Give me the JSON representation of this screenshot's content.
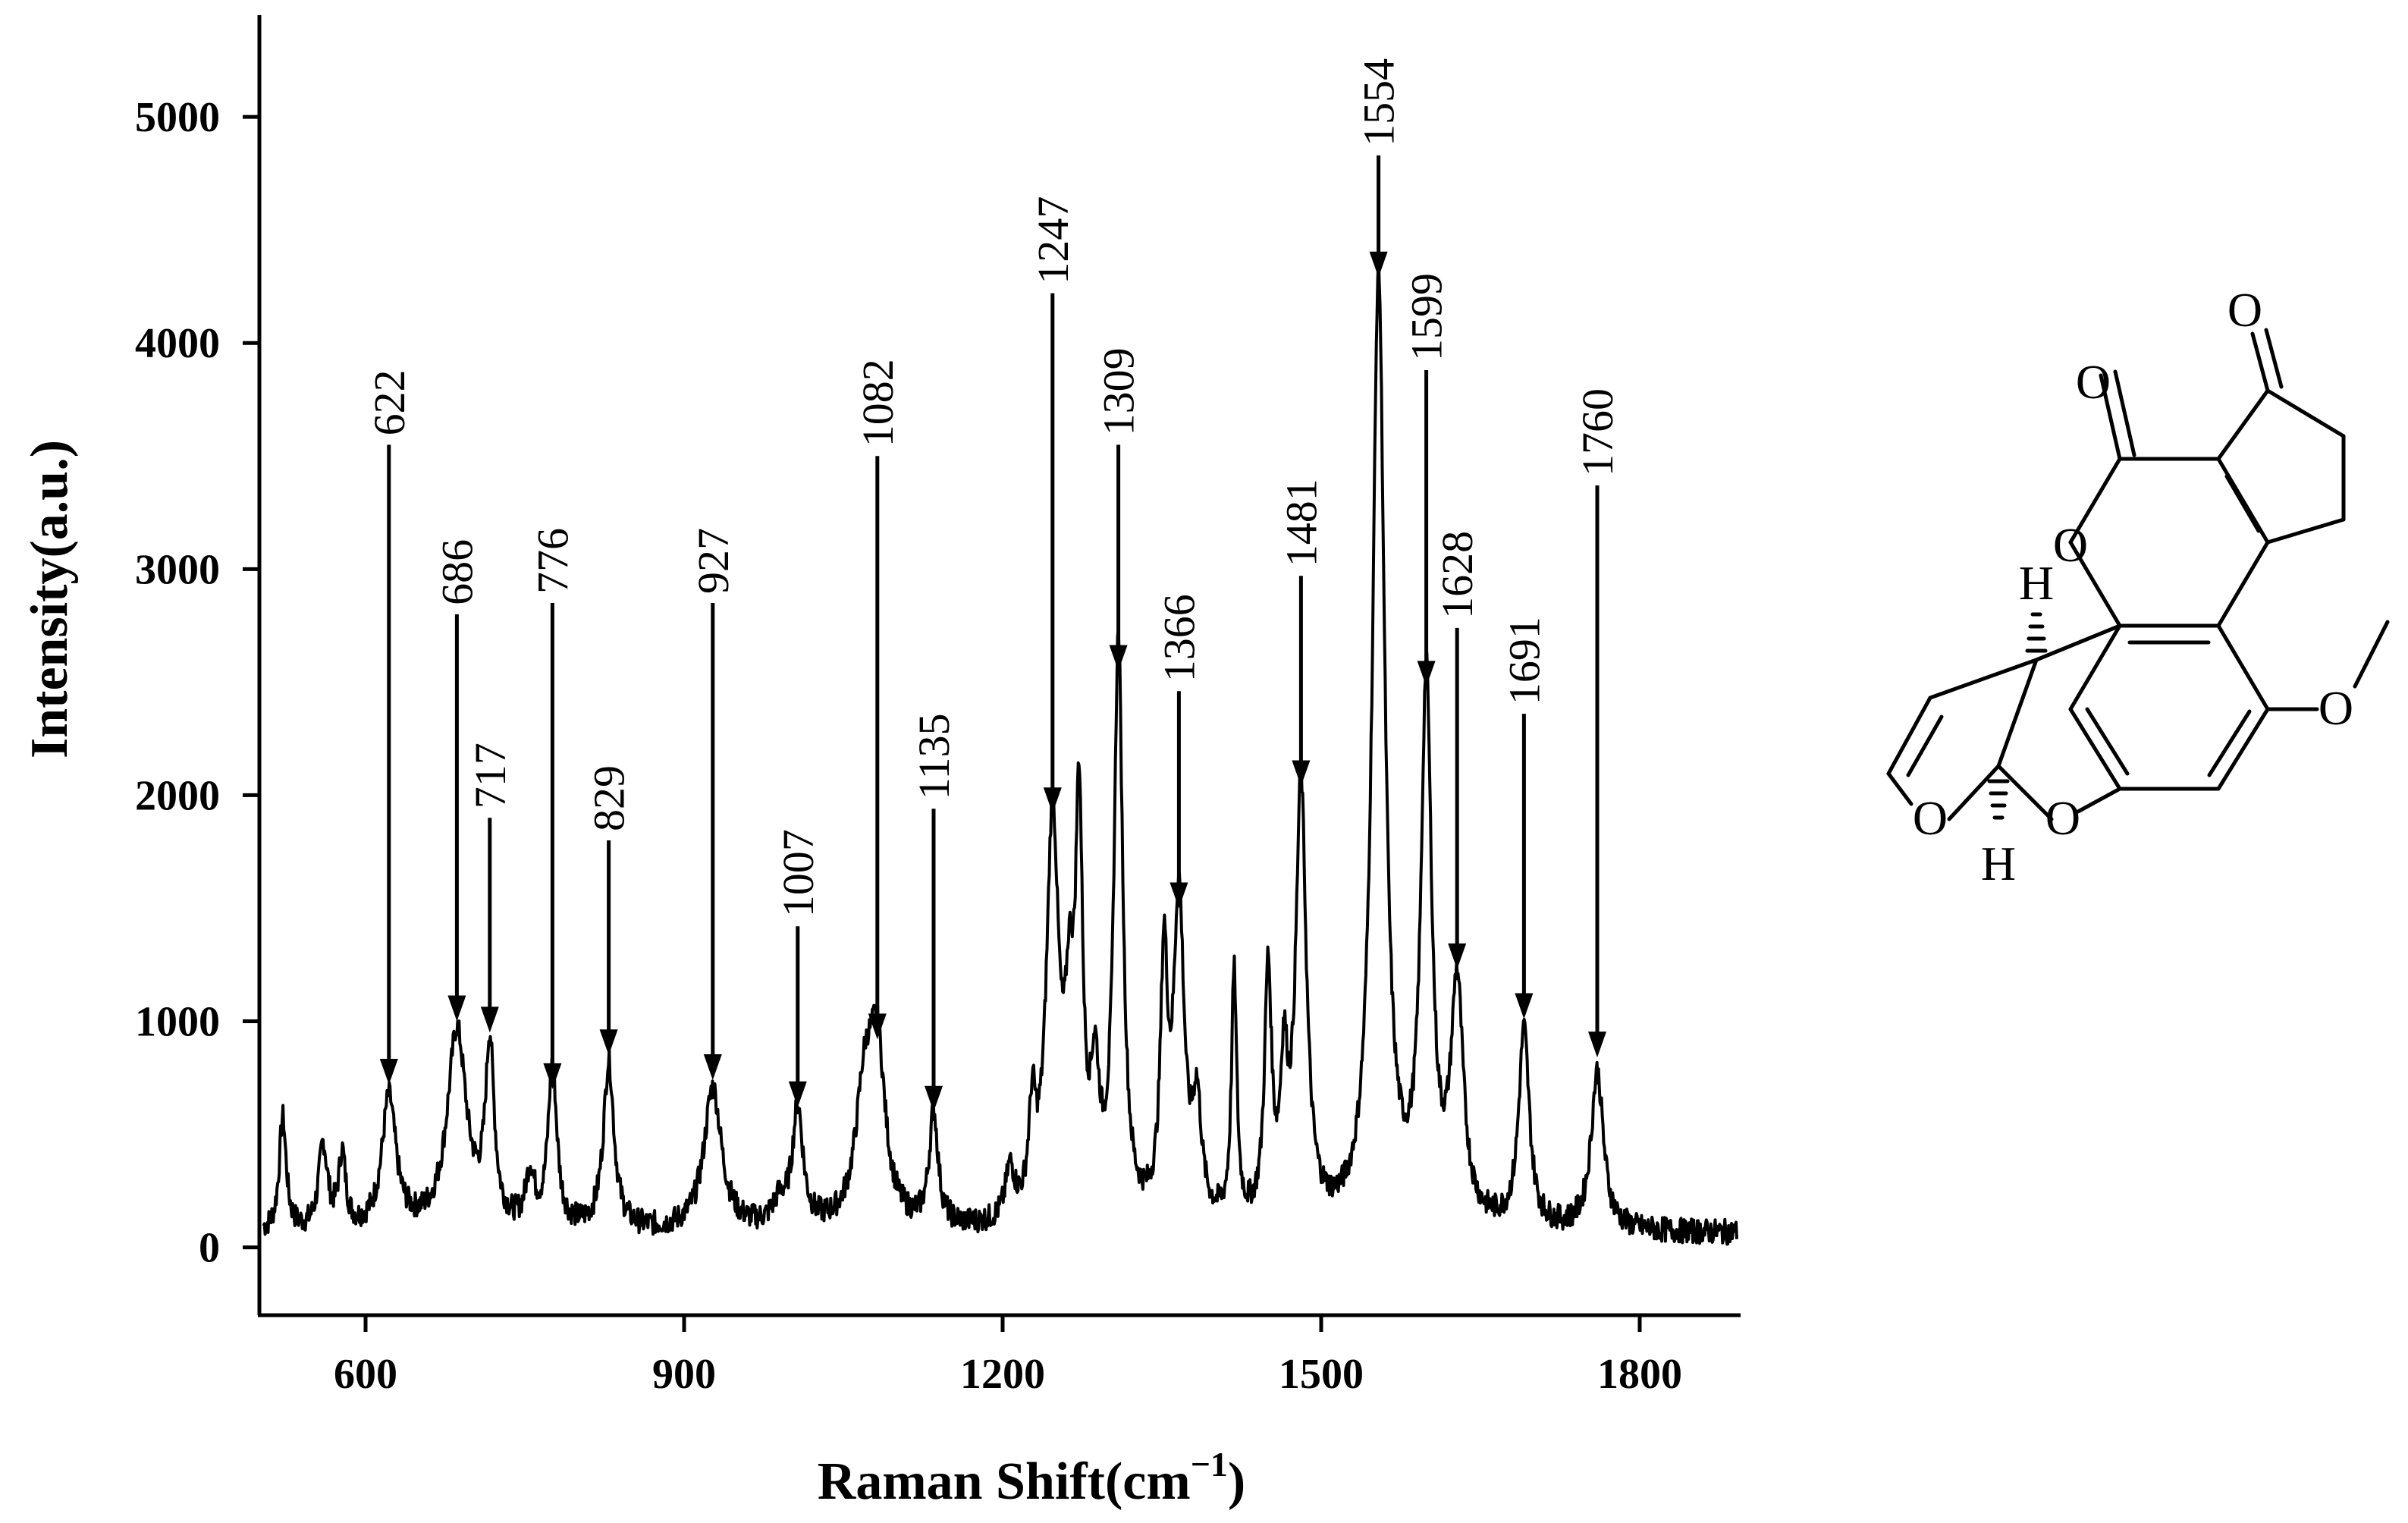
{
  "chart_data": {
    "type": "line",
    "title": "",
    "xlabel": "Raman Shift(cm",
    "xlabel_sup": "−1",
    "xlabel_close": ")",
    "ylabel": "Intensity(a.u.)",
    "xlim": [
      500,
      1895
    ],
    "ylim": [
      -300,
      5450
    ],
    "xticks": [
      600,
      900,
      1200,
      1500,
      1800
    ],
    "yticks": [
      0,
      1000,
      2000,
      3000,
      4000,
      5000
    ],
    "grid": false,
    "baseline": 60,
    "series": [
      {
        "name": "",
        "peaks": [
          {
            "x": 522,
            "y": 560,
            "w": 4
          },
          {
            "x": 560,
            "y": 430,
            "w": 5
          },
          {
            "x": 578,
            "y": 380,
            "w": 4
          },
          {
            "x": 622,
            "y": 640,
            "w": 8
          },
          {
            "x": 686,
            "y": 940,
            "w": 11
          },
          {
            "x": 717,
            "y": 840,
            "w": 5
          },
          {
            "x": 755,
            "y": 290,
            "w": 5
          },
          {
            "x": 776,
            "y": 780,
            "w": 5
          },
          {
            "x": 829,
            "y": 800,
            "w": 6
          },
          {
            "x": 927,
            "y": 690,
            "w": 10
          },
          {
            "x": 990,
            "y": 160,
            "w": 8
          },
          {
            "x": 1007,
            "y": 580,
            "w": 6
          },
          {
            "x": 1070,
            "y": 620,
            "w": 10
          },
          {
            "x": 1082,
            "y": 770,
            "w": 9
          },
          {
            "x": 1135,
            "y": 560,
            "w": 5
          },
          {
            "x": 1207,
            "y": 280,
            "w": 5
          },
          {
            "x": 1228,
            "y": 480,
            "w": 4
          },
          {
            "x": 1247,
            "y": 1820,
            "w": 7
          },
          {
            "x": 1263,
            "y": 800,
            "w": 5
          },
          {
            "x": 1272,
            "y": 1740,
            "w": 4
          },
          {
            "x": 1287,
            "y": 620,
            "w": 5
          },
          {
            "x": 1309,
            "y": 2600,
            "w": 5
          },
          {
            "x": 1352,
            "y": 1150,
            "w": 4
          },
          {
            "x": 1366,
            "y": 1470,
            "w": 6
          },
          {
            "x": 1383,
            "y": 540,
            "w": 5
          },
          {
            "x": 1418,
            "y": 1140,
            "w": 3
          },
          {
            "x": 1450,
            "y": 1140,
            "w": 4
          },
          {
            "x": 1465,
            "y": 660,
            "w": 4
          },
          {
            "x": 1481,
            "y": 1980,
            "w": 6
          },
          {
            "x": 1554,
            "y": 4260,
            "w": 7
          },
          {
            "x": 1599,
            "y": 2420,
            "w": 6
          },
          {
            "x": 1628,
            "y": 1090,
            "w": 7
          },
          {
            "x": 1691,
            "y": 930,
            "w": 6
          },
          {
            "x": 1760,
            "y": 760,
            "w": 7
          }
        ]
      }
    ],
    "annotations": [
      {
        "label": "622",
        "x": 622,
        "y_start": 3550,
        "y_end": 720
      },
      {
        "label": "686",
        "x": 686,
        "y_start": 2800,
        "y_end": 1000
      },
      {
        "label": "717",
        "x": 717,
        "y_start": 1900,
        "y_end": 950
      },
      {
        "label": "776",
        "x": 776,
        "y_start": 2850,
        "y_end": 700
      },
      {
        "label": "829",
        "x": 829,
        "y_start": 1800,
        "y_end": 850
      },
      {
        "label": "927",
        "x": 927,
        "y_start": 2850,
        "y_end": 740
      },
      {
        "label": "1007",
        "x": 1007,
        "y_start": 1420,
        "y_end": 620
      },
      {
        "label": "1082",
        "x": 1082,
        "y_start": 3500,
        "y_end": 920
      },
      {
        "label": "1135",
        "x": 1135,
        "y_start": 1940,
        "y_end": 600
      },
      {
        "label": "1247",
        "x": 1247,
        "y_start": 4220,
        "y_end": 1920
      },
      {
        "label": "1309",
        "x": 1309,
        "y_start": 3550,
        "y_end": 2550
      },
      {
        "label": "1366",
        "x": 1366,
        "y_start": 2460,
        "y_end": 1500
      },
      {
        "label": "1481",
        "x": 1481,
        "y_start": 2970,
        "y_end": 2040
      },
      {
        "label": "1554",
        "x": 1554,
        "y_start": 4830,
        "y_end": 4290
      },
      {
        "label": "1599",
        "x": 1599,
        "y_start": 3880,
        "y_end": 2480
      },
      {
        "label": "1628",
        "x": 1628,
        "y_start": 2740,
        "y_end": 1230
      },
      {
        "label": "1691",
        "x": 1691,
        "y_start": 2360,
        "y_end": 1010
      },
      {
        "label": "1760",
        "x": 1760,
        "y_start": 3370,
        "y_end": 840
      }
    ]
  },
  "molecule": {
    "atoms": {
      "o_ketone": "O",
      "o_lactone_carbonyl": "O",
      "o_lactone_ring": "O",
      "o_methoxy": "O",
      "o_furan_a": "O",
      "o_furan_b": "O",
      "h_top": "H",
      "h_bottom": "H"
    }
  }
}
